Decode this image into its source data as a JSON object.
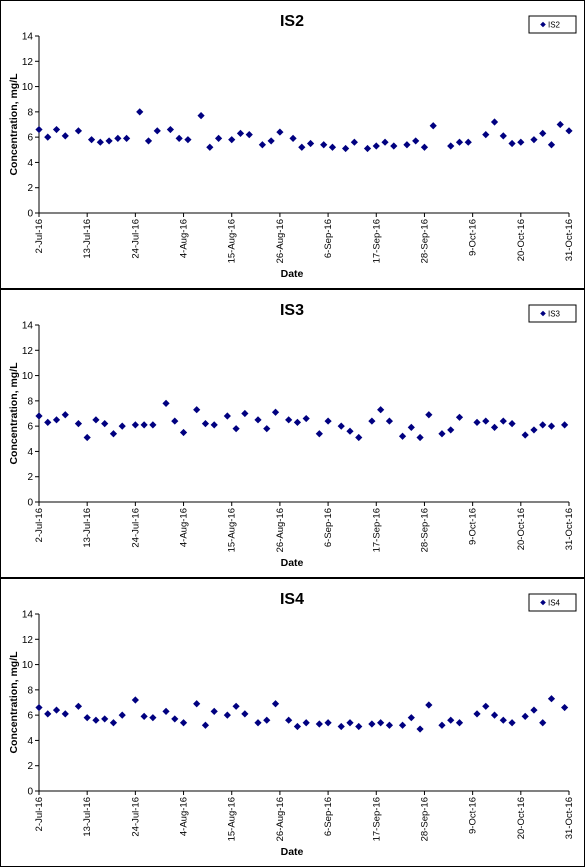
{
  "chart_data": [
    {
      "type": "scatter",
      "title": "IS2",
      "xlabel": "Date",
      "ylabel": "Concentration, mg/L",
      "ylim": [
        0,
        14
      ],
      "yticks": [
        "0",
        "2",
        "4",
        "6",
        "8",
        "10",
        "12",
        "14"
      ],
      "xticks": [
        "2-Jul-16",
        "13-Jul-16",
        "24-Jul-16",
        "4-Aug-16",
        "15-Aug-16",
        "26-Aug-16",
        "6-Sep-16",
        "17-Sep-16",
        "28-Sep-16",
        "9-Oct-16",
        "20-Oct-16",
        "31-Oct-16"
      ],
      "xlim": [
        "2016-07-02",
        "2016-10-31"
      ],
      "grid": false,
      "legend_position": "top-right",
      "series": [
        {
          "name": "IS2",
          "color": "#000080",
          "marker": "diamond",
          "points": [
            [
              "2016-07-02",
              6.6
            ],
            [
              "2016-07-04",
              6.0
            ],
            [
              "2016-07-06",
              6.6
            ],
            [
              "2016-07-08",
              6.1
            ],
            [
              "2016-07-11",
              6.5
            ],
            [
              "2016-07-14",
              5.8
            ],
            [
              "2016-07-16",
              5.6
            ],
            [
              "2016-07-18",
              5.7
            ],
            [
              "2016-07-20",
              5.9
            ],
            [
              "2016-07-22",
              5.9
            ],
            [
              "2016-07-25",
              8.0
            ],
            [
              "2016-07-27",
              5.7
            ],
            [
              "2016-07-29",
              6.5
            ],
            [
              "2016-08-01",
              6.6
            ],
            [
              "2016-08-03",
              5.9
            ],
            [
              "2016-08-05",
              5.8
            ],
            [
              "2016-08-08",
              7.7
            ],
            [
              "2016-08-10",
              5.2
            ],
            [
              "2016-08-12",
              5.9
            ],
            [
              "2016-08-15",
              5.8
            ],
            [
              "2016-08-17",
              6.3
            ],
            [
              "2016-08-19",
              6.2
            ],
            [
              "2016-08-22",
              5.4
            ],
            [
              "2016-08-24",
              5.7
            ],
            [
              "2016-08-26",
              6.4
            ],
            [
              "2016-08-29",
              5.9
            ],
            [
              "2016-08-31",
              5.2
            ],
            [
              "2016-09-02",
              5.5
            ],
            [
              "2016-09-05",
              5.4
            ],
            [
              "2016-09-07",
              5.2
            ],
            [
              "2016-09-10",
              5.1
            ],
            [
              "2016-09-12",
              5.6
            ],
            [
              "2016-09-15",
              5.1
            ],
            [
              "2016-09-17",
              5.3
            ],
            [
              "2016-09-19",
              5.6
            ],
            [
              "2016-09-21",
              5.3
            ],
            [
              "2016-09-24",
              5.4
            ],
            [
              "2016-09-26",
              5.7
            ],
            [
              "2016-09-28",
              5.2
            ],
            [
              "2016-09-30",
              6.9
            ],
            [
              "2016-10-04",
              5.3
            ],
            [
              "2016-10-06",
              5.6
            ],
            [
              "2016-10-08",
              5.6
            ],
            [
              "2016-10-12",
              6.2
            ],
            [
              "2016-10-14",
              7.2
            ],
            [
              "2016-10-16",
              6.1
            ],
            [
              "2016-10-18",
              5.5
            ],
            [
              "2016-10-20",
              5.6
            ],
            [
              "2016-10-23",
              5.8
            ],
            [
              "2016-10-25",
              6.3
            ],
            [
              "2016-10-27",
              5.4
            ],
            [
              "2016-10-29",
              7.0
            ],
            [
              "2016-10-31",
              6.5
            ]
          ]
        }
      ]
    },
    {
      "type": "scatter",
      "title": "IS3",
      "xlabel": "Date",
      "ylabel": "Concentration, mg/L",
      "ylim": [
        0,
        14
      ],
      "yticks": [
        "0",
        "2",
        "4",
        "6",
        "8",
        "10",
        "12",
        "14"
      ],
      "xticks": [
        "2-Jul-16",
        "13-Jul-16",
        "24-Jul-16",
        "4-Aug-16",
        "15-Aug-16",
        "26-Aug-16",
        "6-Sep-16",
        "17-Sep-16",
        "28-Sep-16",
        "9-Oct-16",
        "20-Oct-16",
        "31-Oct-16"
      ],
      "xlim": [
        "2016-07-02",
        "2016-10-31"
      ],
      "grid": false,
      "legend_position": "top-right",
      "series": [
        {
          "name": "IS3",
          "color": "#000080",
          "marker": "diamond",
          "points": [
            [
              "2016-07-02",
              6.8
            ],
            [
              "2016-07-04",
              6.3
            ],
            [
              "2016-07-06",
              6.5
            ],
            [
              "2016-07-08",
              6.9
            ],
            [
              "2016-07-11",
              6.2
            ],
            [
              "2016-07-13",
              5.1
            ],
            [
              "2016-07-15",
              6.5
            ],
            [
              "2016-07-17",
              6.2
            ],
            [
              "2016-07-19",
              5.4
            ],
            [
              "2016-07-21",
              6.0
            ],
            [
              "2016-07-24",
              6.1
            ],
            [
              "2016-07-26",
              6.1
            ],
            [
              "2016-07-28",
              6.1
            ],
            [
              "2016-07-31",
              7.8
            ],
            [
              "2016-08-02",
              6.4
            ],
            [
              "2016-08-04",
              5.5
            ],
            [
              "2016-08-07",
              7.3
            ],
            [
              "2016-08-09",
              6.2
            ],
            [
              "2016-08-11",
              6.1
            ],
            [
              "2016-08-14",
              6.8
            ],
            [
              "2016-08-16",
              5.8
            ],
            [
              "2016-08-18",
              7.0
            ],
            [
              "2016-08-21",
              6.5
            ],
            [
              "2016-08-23",
              5.8
            ],
            [
              "2016-08-25",
              7.1
            ],
            [
              "2016-08-28",
              6.5
            ],
            [
              "2016-08-30",
              6.3
            ],
            [
              "2016-09-01",
              6.6
            ],
            [
              "2016-09-04",
              5.4
            ],
            [
              "2016-09-06",
              6.4
            ],
            [
              "2016-09-09",
              6.0
            ],
            [
              "2016-09-11",
              5.6
            ],
            [
              "2016-09-13",
              5.1
            ],
            [
              "2016-09-16",
              6.4
            ],
            [
              "2016-09-18",
              7.3
            ],
            [
              "2016-09-20",
              6.4
            ],
            [
              "2016-09-23",
              5.2
            ],
            [
              "2016-09-25",
              5.9
            ],
            [
              "2016-09-27",
              5.1
            ],
            [
              "2016-09-29",
              6.9
            ],
            [
              "2016-10-02",
              5.4
            ],
            [
              "2016-10-04",
              5.7
            ],
            [
              "2016-10-06",
              6.7
            ],
            [
              "2016-10-10",
              6.3
            ],
            [
              "2016-10-12",
              6.4
            ],
            [
              "2016-10-14",
              5.9
            ],
            [
              "2016-10-16",
              6.4
            ],
            [
              "2016-10-18",
              6.2
            ],
            [
              "2016-10-21",
              5.3
            ],
            [
              "2016-10-23",
              5.7
            ],
            [
              "2016-10-25",
              6.1
            ],
            [
              "2016-10-27",
              6.0
            ],
            [
              "2016-10-30",
              6.1
            ]
          ]
        }
      ]
    },
    {
      "type": "scatter",
      "title": "IS4",
      "xlabel": "Date",
      "ylabel": "Concentration, mg/L",
      "ylim": [
        0,
        14
      ],
      "yticks": [
        "0",
        "2",
        "4",
        "6",
        "8",
        "10",
        "12",
        "14"
      ],
      "xticks": [
        "2-Jul-16",
        "13-Jul-16",
        "24-Jul-16",
        "4-Aug-16",
        "15-Aug-16",
        "26-Aug-16",
        "6-Sep-16",
        "17-Sep-16",
        "28-Sep-16",
        "9-Oct-16",
        "20-Oct-16",
        "31-Oct-16"
      ],
      "xlim": [
        "2016-07-02",
        "2016-10-31"
      ],
      "grid": false,
      "legend_position": "top-right",
      "series": [
        {
          "name": "IS4",
          "color": "#000080",
          "marker": "diamond",
          "points": [
            [
              "2016-07-02",
              6.6
            ],
            [
              "2016-07-04",
              6.1
            ],
            [
              "2016-07-06",
              6.4
            ],
            [
              "2016-07-08",
              6.1
            ],
            [
              "2016-07-11",
              6.7
            ],
            [
              "2016-07-13",
              5.8
            ],
            [
              "2016-07-15",
              5.6
            ],
            [
              "2016-07-17",
              5.7
            ],
            [
              "2016-07-19",
              5.4
            ],
            [
              "2016-07-21",
              6.0
            ],
            [
              "2016-07-24",
              7.2
            ],
            [
              "2016-07-26",
              5.9
            ],
            [
              "2016-07-28",
              5.8
            ],
            [
              "2016-07-31",
              6.3
            ],
            [
              "2016-08-02",
              5.7
            ],
            [
              "2016-08-04",
              5.4
            ],
            [
              "2016-08-07",
              6.9
            ],
            [
              "2016-08-09",
              5.2
            ],
            [
              "2016-08-11",
              6.3
            ],
            [
              "2016-08-14",
              6.0
            ],
            [
              "2016-08-16",
              6.7
            ],
            [
              "2016-08-18",
              6.1
            ],
            [
              "2016-08-21",
              5.4
            ],
            [
              "2016-08-23",
              5.6
            ],
            [
              "2016-08-25",
              6.9
            ],
            [
              "2016-08-28",
              5.6
            ],
            [
              "2016-08-30",
              5.1
            ],
            [
              "2016-09-01",
              5.4
            ],
            [
              "2016-09-04",
              5.3
            ],
            [
              "2016-09-06",
              5.4
            ],
            [
              "2016-09-09",
              5.1
            ],
            [
              "2016-09-11",
              5.4
            ],
            [
              "2016-09-13",
              5.1
            ],
            [
              "2016-09-16",
              5.3
            ],
            [
              "2016-09-18",
              5.4
            ],
            [
              "2016-09-20",
              5.2
            ],
            [
              "2016-09-23",
              5.2
            ],
            [
              "2016-09-25",
              5.8
            ],
            [
              "2016-09-27",
              4.9
            ],
            [
              "2016-09-29",
              6.8
            ],
            [
              "2016-10-02",
              5.2
            ],
            [
              "2016-10-04",
              5.6
            ],
            [
              "2016-10-06",
              5.4
            ],
            [
              "2016-10-10",
              6.1
            ],
            [
              "2016-10-12",
              6.7
            ],
            [
              "2016-10-14",
              6.0
            ],
            [
              "2016-10-16",
              5.6
            ],
            [
              "2016-10-18",
              5.4
            ],
            [
              "2016-10-21",
              5.9
            ],
            [
              "2016-10-23",
              6.4
            ],
            [
              "2016-10-25",
              5.4
            ],
            [
              "2016-10-27",
              7.3
            ],
            [
              "2016-10-30",
              6.6
            ]
          ]
        }
      ]
    }
  ]
}
